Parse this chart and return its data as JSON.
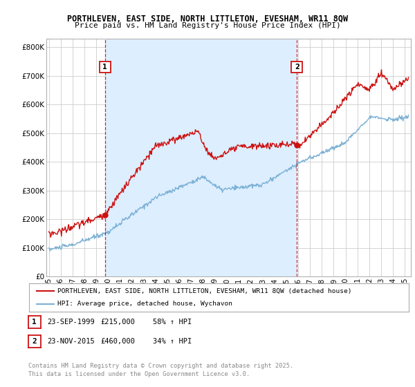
{
  "title1": "PORTHLEVEN, EAST SIDE, NORTH LITTLETON, EVESHAM, WR11 8QW",
  "title2": "Price paid vs. HM Land Registry's House Price Index (HPI)",
  "ytick_values": [
    0,
    100000,
    200000,
    300000,
    400000,
    500000,
    600000,
    700000,
    800000
  ],
  "ylim": [
    0,
    830000
  ],
  "xlim_start": 1994.8,
  "xlim_end": 2025.5,
  "xticks": [
    1995,
    1996,
    1997,
    1998,
    1999,
    2000,
    2001,
    2002,
    2003,
    2004,
    2005,
    2006,
    2007,
    2008,
    2009,
    2010,
    2011,
    2012,
    2013,
    2014,
    2015,
    2016,
    2017,
    2018,
    2019,
    2020,
    2021,
    2022,
    2023,
    2024,
    2025
  ],
  "sale1_x": 1999.73,
  "sale1_y": 215000,
  "sale1_label": "1",
  "sale2_x": 2015.9,
  "sale2_y": 460000,
  "sale2_label": "2",
  "vline_color": "#cc0000",
  "shade_color": "#ddeeff",
  "legend_line1": "PORTHLEVEN, EAST SIDE, NORTH LITTLETON, EVESHAM, WR11 8QW (detached house)",
  "legend_line2": "HPI: Average price, detached house, Wychavon",
  "red_color": "#cc1111",
  "blue_color": "#7ab0d4",
  "note1_num": "1",
  "note1_date": "23-SEP-1999",
  "note1_price": "£215,000",
  "note1_hpi": "58% ↑ HPI",
  "note2_num": "2",
  "note2_date": "23-NOV-2015",
  "note2_price": "£460,000",
  "note2_hpi": "34% ↑ HPI",
  "footer": "Contains HM Land Registry data © Crown copyright and database right 2025.\nThis data is licensed under the Open Government Licence v3.0.",
  "bg_color": "#ffffff",
  "grid_color": "#cccccc"
}
